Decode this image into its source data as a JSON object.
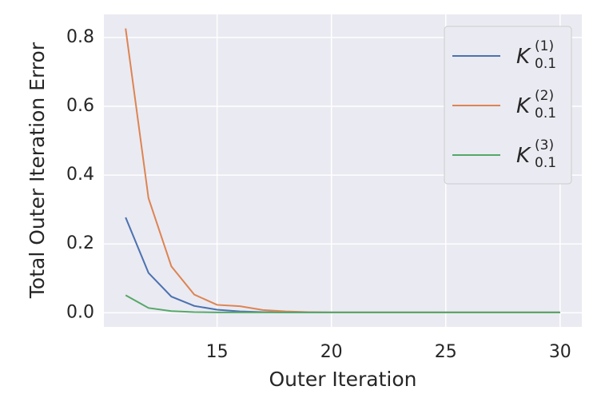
{
  "chart_data": {
    "type": "line",
    "xlabel": "Outer Iteration",
    "ylabel": "Total Outer Iteration Error",
    "x": [
      11,
      12,
      13,
      14,
      15,
      16,
      17,
      18,
      19,
      20,
      21,
      22,
      23,
      24,
      25,
      26,
      27,
      28,
      29,
      30
    ],
    "series": [
      {
        "name": "K",
        "subscript": "0.1",
        "superscript": "(1)",
        "color": "#4c72b0",
        "values": [
          0.277,
          0.116,
          0.047,
          0.02,
          0.009,
          0.004,
          0.002,
          0.001,
          0.001,
          0.001,
          0.001,
          0.001,
          0.001,
          0.001,
          0.001,
          0.001,
          0.001,
          0.001,
          0.001,
          0.001
        ]
      },
      {
        "name": "K",
        "subscript": "0.1",
        "superscript": "(2)",
        "color": "#dd8452",
        "values": [
          0.826,
          0.333,
          0.135,
          0.053,
          0.023,
          0.019,
          0.008,
          0.004,
          0.002,
          0.001,
          0.001,
          0.001,
          0.001,
          0.001,
          0.001,
          0.001,
          0.001,
          0.001,
          0.001,
          0.001
        ]
      },
      {
        "name": "K",
        "subscript": "0.1",
        "superscript": "(3)",
        "color": "#55a868",
        "values": [
          0.051,
          0.014,
          0.005,
          0.002,
          0.001,
          0.001,
          0.001,
          0.001,
          0.001,
          0.001,
          0.001,
          0.001,
          0.001,
          0.001,
          0.001,
          0.001,
          0.001,
          0.001,
          0.001,
          0.001
        ]
      }
    ],
    "xlim": [
      10.05,
      30.95
    ],
    "xticks": [
      15,
      20,
      25,
      30
    ],
    "ylim": [
      -0.041,
      0.867
    ],
    "yticks": [
      {
        "value": 0,
        "label": "0.0"
      },
      {
        "value": 0.2,
        "label": "0.2"
      },
      {
        "value": 0.4,
        "label": "0.4"
      },
      {
        "value": 0.6,
        "label": "0.6"
      },
      {
        "value": 0.8,
        "label": "0.8"
      }
    ],
    "grid": true,
    "legend": "upper right"
  }
}
